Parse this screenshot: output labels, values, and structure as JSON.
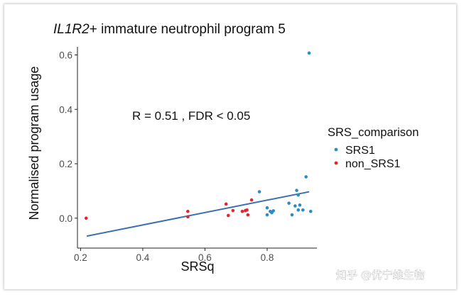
{
  "chart_data": {
    "type": "scatter",
    "title_gene": "IL1R2",
    "title_rest": "+ immature neutrophil program 5",
    "xlabel": "SRSq",
    "ylabel": "Normalised program usage",
    "xlim": [
      0.19,
      0.96
    ],
    "ylim": [
      -0.11,
      0.63
    ],
    "xticks": [
      0.2,
      0.4,
      0.6,
      0.8
    ],
    "xtick_labels": [
      "0.2",
      "0.4",
      "0.6",
      "0.8"
    ],
    "yticks": [
      0.0,
      0.2,
      0.4,
      0.6
    ],
    "ytick_labels": [
      "0.0",
      "0.2",
      "0.4",
      "0.6"
    ],
    "annotation": "R = 0.51 , FDR < 0.05",
    "grid": false,
    "legend_position": "right",
    "legend": {
      "title": "SRS_comparison",
      "entries": [
        {
          "label": "SRS1",
          "color": "#2b8cc4"
        },
        {
          "label": "non_SRS1",
          "color": "#e0262f"
        }
      ]
    },
    "series": [
      {
        "name": "SRS1",
        "color": "#2b8cc4",
        "points": [
          {
            "x": 0.935,
            "y": 0.607
          },
          {
            "x": 0.925,
            "y": 0.152
          },
          {
            "x": 0.895,
            "y": 0.102
          },
          {
            "x": 0.9,
            "y": 0.085
          },
          {
            "x": 0.775,
            "y": 0.097
          },
          {
            "x": 0.87,
            "y": 0.055
          },
          {
            "x": 0.89,
            "y": 0.045
          },
          {
            "x": 0.905,
            "y": 0.048
          },
          {
            "x": 0.8,
            "y": 0.038
          },
          {
            "x": 0.81,
            "y": 0.025
          },
          {
            "x": 0.815,
            "y": 0.02
          },
          {
            "x": 0.82,
            "y": 0.027
          },
          {
            "x": 0.8,
            "y": 0.012
          },
          {
            "x": 0.88,
            "y": 0.012
          },
          {
            "x": 0.9,
            "y": 0.03
          },
          {
            "x": 0.915,
            "y": 0.03
          },
          {
            "x": 0.94,
            "y": 0.025
          }
        ]
      },
      {
        "name": "non_SRS1",
        "color": "#e0262f",
        "points": [
          {
            "x": 0.218,
            "y": 0.0
          },
          {
            "x": 0.545,
            "y": 0.025
          },
          {
            "x": 0.545,
            "y": 0.005
          },
          {
            "x": 0.668,
            "y": 0.052
          },
          {
            "x": 0.675,
            "y": 0.01
          },
          {
            "x": 0.69,
            "y": 0.028
          },
          {
            "x": 0.72,
            "y": 0.025
          },
          {
            "x": 0.73,
            "y": 0.028
          },
          {
            "x": 0.738,
            "y": 0.012
          },
          {
            "x": 0.75,
            "y": 0.067
          },
          {
            "x": 0.735,
            "y": 0.03
          }
        ]
      }
    ],
    "fit_line": {
      "color": "#3a6fb0",
      "x": [
        0.22,
        0.935
      ],
      "y": [
        -0.066,
        0.097
      ]
    }
  },
  "watermark": "知乎 @优宁维生物"
}
